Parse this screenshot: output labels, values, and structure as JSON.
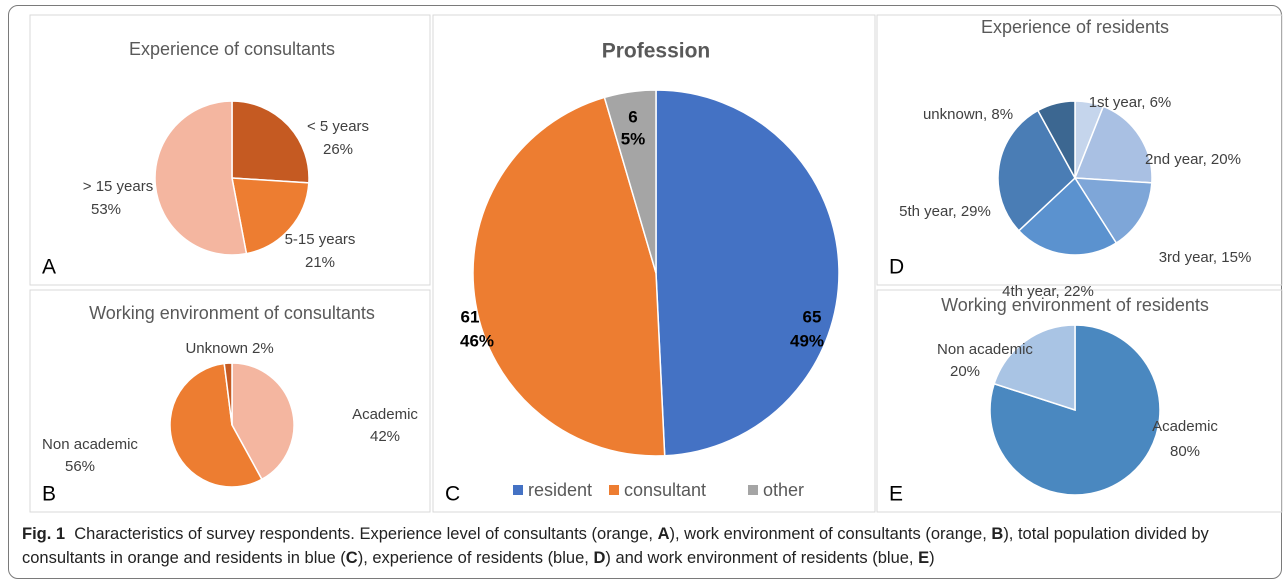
{
  "chart_data": [
    {
      "type": "pie",
      "panel": "A",
      "title": "Experience of consultants",
      "categories": [
        "< 5 years",
        "5-15 years",
        "> 15 years"
      ],
      "values": [
        26,
        21,
        53
      ],
      "value_labels": [
        "26%",
        "21%",
        "53%"
      ],
      "colors": [
        "#c55a22",
        "#ed7d31",
        "#f4b6a0"
      ]
    },
    {
      "type": "pie",
      "panel": "B",
      "title": "Working environment of consultants",
      "categories": [
        "Academic",
        "Non academic",
        "Unknown"
      ],
      "values": [
        42,
        56,
        2
      ],
      "value_labels": [
        "42%",
        "56%",
        "2%"
      ],
      "colors": [
        "#f4b6a0",
        "#ed7d31",
        "#c55a22"
      ]
    },
    {
      "type": "pie",
      "panel": "C",
      "title": "Profession",
      "categories": [
        "resident",
        "consultant",
        "other"
      ],
      "values": [
        65,
        61,
        6
      ],
      "percent_labels": [
        "49%",
        "46%",
        "5%"
      ],
      "colors": [
        "#4472c4",
        "#ed7d31",
        "#a5a5a5"
      ],
      "legend": "bottom"
    },
    {
      "type": "pie",
      "panel": "D",
      "title": "Experience of residents",
      "values": [
        6,
        20,
        15,
        22,
        29,
        8
      ],
      "value_labels": [
        "1st year, 6%",
        "2nd year, 20%",
        "3rd year, 15%",
        "4th year, 22%",
        "5th year, 29%",
        "unknown, 8%"
      ],
      "colors": [
        "#c5d5ec",
        "#a9c0e3",
        "#7ea6d8",
        "#5b92cf",
        "#4a7db5",
        "#3c6791"
      ]
    },
    {
      "type": "pie",
      "panel": "E",
      "title": "Working environment of residents",
      "categories": [
        "Academic",
        "Non academic"
      ],
      "values": [
        80,
        20
      ],
      "value_labels": [
        "80%",
        "20%"
      ],
      "colors": [
        "#4a88c0",
        "#a9c4e4"
      ]
    }
  ],
  "caption": {
    "label": "Fig. 1",
    "parts": [
      "Characteristics of survey respondents. Experience level of consultants (orange, ",
      "A",
      "), work environment of consultants (orange, ",
      "B",
      "), total population divided by consultants in orange and residents in blue (",
      "C",
      "), experience of residents (blue, ",
      "D",
      ") and work environment of residents (blue, ",
      "E",
      ")"
    ]
  }
}
